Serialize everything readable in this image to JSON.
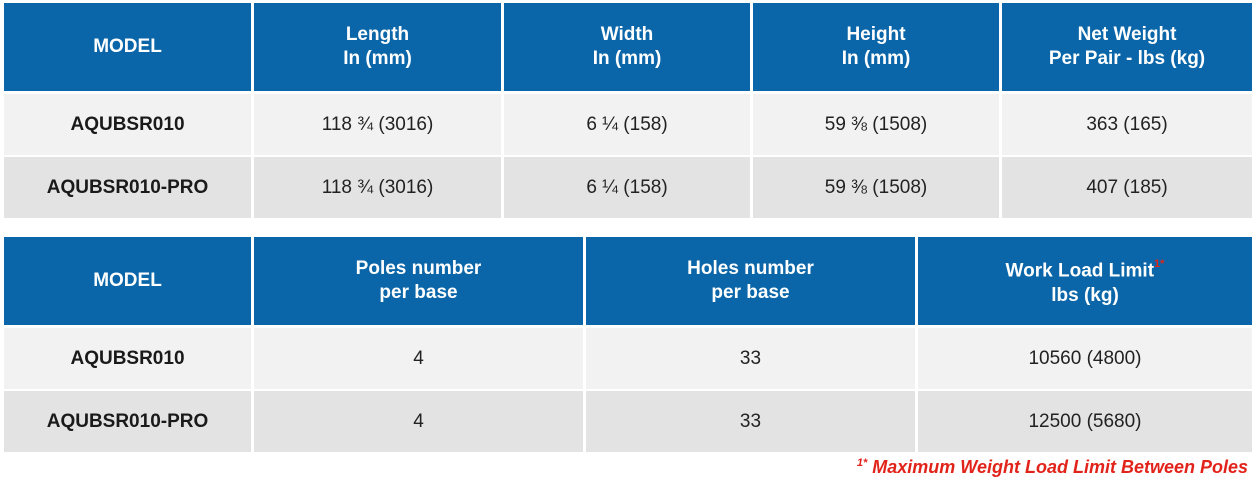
{
  "dimensions_table": {
    "headers": [
      {
        "line1": "MODEL",
        "line2": ""
      },
      {
        "line1": "Length",
        "line2": "In (mm)"
      },
      {
        "line1": "Width",
        "line2": "In (mm)"
      },
      {
        "line1": "Height",
        "line2": "In (mm)"
      },
      {
        "line1": "Net Weight",
        "line2": "Per Pair - lbs (kg)"
      }
    ],
    "rows": [
      {
        "model": "AQUBSR010",
        "length": "118 ¾ (3016)",
        "width": "6 ¼ (158)",
        "height": "59 ⅜ (1508)",
        "net_weight": "363 (165)"
      },
      {
        "model": "AQUBSR010-PRO",
        "length": "118 ¾ (3016)",
        "width": "6 ¼ (158)",
        "height": "59 ⅜ (1508)",
        "net_weight": "407 (185)"
      }
    ]
  },
  "load_table": {
    "headers": [
      {
        "line1": "MODEL",
        "line2": ""
      },
      {
        "line1": "Poles number",
        "line2": "per base"
      },
      {
        "line1": "Holes number",
        "line2": "per base"
      },
      {
        "line1": "Work Load Limit",
        "line2": "lbs (kg)",
        "ref": "1*"
      }
    ],
    "rows": [
      {
        "model": "AQUBSR010",
        "poles": "4",
        "holes": "33",
        "wll": "10560 (4800)"
      },
      {
        "model": "AQUBSR010-PRO",
        "poles": "4",
        "holes": "33",
        "wll": "12500 (5680)"
      }
    ]
  },
  "footnote": {
    "ref": "1*",
    "text": "Maximum Weight Load Limit Between Poles"
  },
  "colors": {
    "header_bg": "#0a66a8",
    "row_odd": "#f2f2f2",
    "row_even": "#e3e3e3",
    "footnote": "#e2231a"
  }
}
